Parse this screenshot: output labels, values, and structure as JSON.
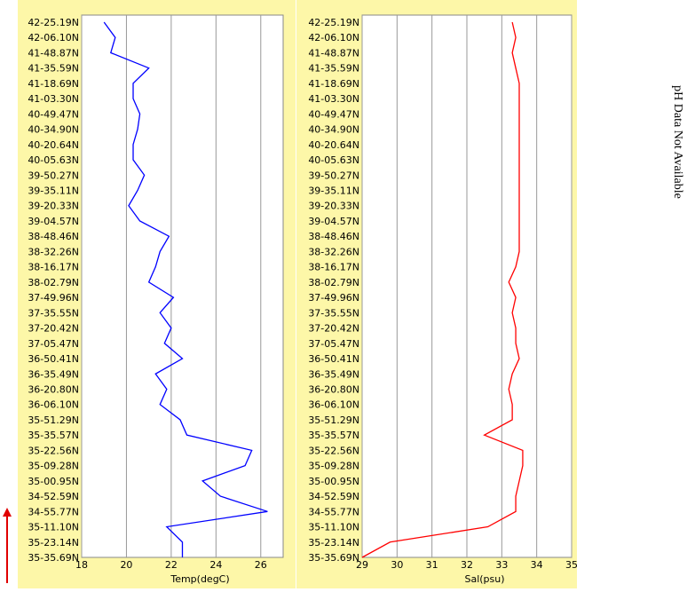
{
  "chart_data": [
    {
      "type": "line",
      "x_label": "Temp(degC)",
      "categories": [
        "42-25.19N",
        "42-06.10N",
        "41-48.87N",
        "41-35.59N",
        "41-18.69N",
        "41-03.30N",
        "40-49.47N",
        "40-34.90N",
        "40-20.64N",
        "40-05.63N",
        "39-50.27N",
        "39-35.11N",
        "39-20.33N",
        "39-04.57N",
        "38-48.46N",
        "38-32.26N",
        "38-16.17N",
        "38-02.79N",
        "37-49.96N",
        "37-35.55N",
        "37-20.42N",
        "37-05.47N",
        "36-50.41N",
        "36-35.49N",
        "36-20.80N",
        "36-06.10N",
        "35-51.29N",
        "35-35.57N",
        "35-22.56N",
        "35-09.28N",
        "35-00.95N",
        "34-52.59N",
        "34-55.77N",
        "35-11.10N",
        "35-23.14N",
        "35-35.69N"
      ],
      "series": [
        {
          "name": "Temp",
          "color": "#0000ff",
          "values": [
            19.0,
            19.5,
            19.3,
            21.0,
            20.3,
            20.3,
            20.6,
            20.5,
            20.3,
            20.3,
            20.8,
            20.5,
            20.1,
            20.6,
            21.9,
            21.5,
            21.3,
            21.0,
            22.1,
            21.5,
            22.0,
            21.7,
            22.5,
            21.3,
            21.8,
            21.5,
            22.4,
            22.7,
            25.6,
            25.3,
            23.4,
            24.2,
            26.3,
            21.8,
            22.5,
            22.5
          ]
        }
      ],
      "xlim": [
        18,
        27
      ],
      "xticks": [
        18,
        20,
        22,
        24,
        26
      ],
      "grid": true
    },
    {
      "type": "line",
      "x_label": "Sal(psu)",
      "categories": [
        "42-25.19N",
        "42-06.10N",
        "41-48.87N",
        "41-35.59N",
        "41-18.69N",
        "41-03.30N",
        "40-49.47N",
        "40-34.90N",
        "40-20.64N",
        "40-05.63N",
        "39-50.27N",
        "39-35.11N",
        "39-20.33N",
        "39-04.57N",
        "38-48.46N",
        "38-32.26N",
        "38-16.17N",
        "38-02.79N",
        "37-49.96N",
        "37-35.55N",
        "37-20.42N",
        "37-05.47N",
        "36-50.41N",
        "36-35.49N",
        "36-20.80N",
        "36-06.10N",
        "35-51.29N",
        "35-35.57N",
        "35-22.56N",
        "35-09.28N",
        "35-00.95N",
        "34-52.59N",
        "34-55.77N",
        "35-11.10N",
        "35-23.14N",
        "35-35.69N"
      ],
      "series": [
        {
          "name": "Sal",
          "color": "#ff0000",
          "values": [
            33.3,
            33.4,
            33.3,
            33.4,
            33.5,
            33.5,
            33.5,
            33.5,
            33.5,
            33.5,
            33.5,
            33.5,
            33.5,
            33.5,
            33.5,
            33.5,
            33.4,
            33.2,
            33.4,
            33.3,
            33.4,
            33.4,
            33.5,
            33.3,
            33.2,
            33.3,
            33.3,
            32.5,
            33.6,
            33.6,
            33.5,
            33.4,
            33.4,
            32.6,
            29.8,
            29.0
          ]
        }
      ],
      "xlim": [
        29,
        35
      ],
      "xticks": [
        29,
        30,
        31,
        32,
        33,
        34,
        35
      ],
      "grid": true
    }
  ],
  "note": "pH Data Not Available"
}
